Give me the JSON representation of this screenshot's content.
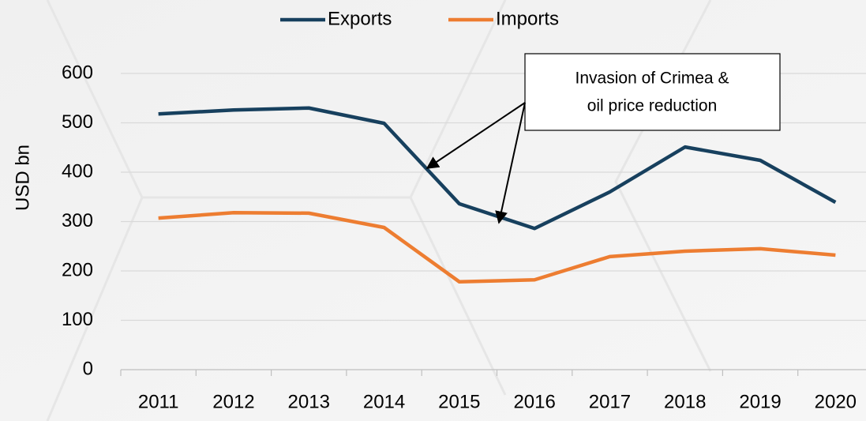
{
  "chart_data": {
    "type": "line",
    "categories": [
      "2011",
      "2012",
      "2013",
      "2014",
      "2015",
      "2016",
      "2017",
      "2018",
      "2019",
      "2020"
    ],
    "series": [
      {
        "name": "Exports",
        "color": "#17405e",
        "values": [
          518,
          526,
          530,
          499,
          336,
          286,
          360,
          451,
          424,
          339
        ]
      },
      {
        "name": "Imports",
        "color": "#ed7d31",
        "values": [
          307,
          318,
          317,
          288,
          178,
          182,
          229,
          240,
          245,
          232
        ]
      }
    ],
    "ylabel": "USD bn",
    "ylim": [
      0,
      600
    ],
    "yticks": [
      0,
      100,
      200,
      300,
      400,
      500,
      600
    ],
    "grid": true,
    "legend": "top",
    "annotation": {
      "lines": [
        "Invasion of Crimea &",
        "oil price reduction"
      ],
      "color": "#ff0000"
    }
  }
}
